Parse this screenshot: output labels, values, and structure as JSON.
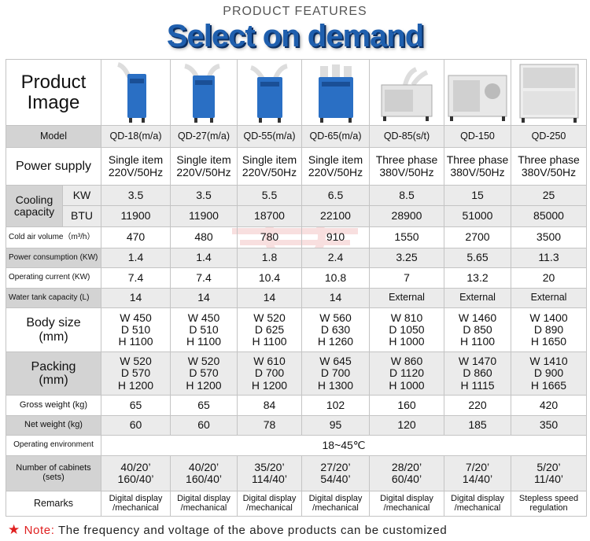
{
  "header": {
    "kicker": "PRODUCT FEATURES",
    "title": "Select on demand"
  },
  "labels": {
    "product_image": "Product\nImage",
    "model": "Model",
    "power_supply": "Power supply",
    "cooling_capacity": "Cooling\ncapacity",
    "kw": "KW",
    "btu": "BTU",
    "cold_air_volume": "Cold air volume（m³/h）",
    "power_consumption": "Power consumption (KW)",
    "operating_current": "Operating current (KW)",
    "water_tank": "Water tank capacity (L)",
    "body_size": "Body size\n(mm)",
    "packing": "Packing\n(mm)",
    "gross_weight": "Gross weight (kg)",
    "net_weight": "Net weight (kg)",
    "operating_environment": "Operating environment",
    "cabinets": "Number of cabinets\n(sets)",
    "remarks": "Remarks"
  },
  "models": [
    {
      "model": "QD-18(m/a)",
      "icon": "spot-cooler-single-duct-icon",
      "power": "Single item\n220V/50Hz",
      "kw": "3.5",
      "btu": "11900",
      "air": "470",
      "consumption": "1.4",
      "current": "7.4",
      "tank": "14",
      "body": "W 450\nD 510\nH 1100",
      "packing": "W 520\nD 570\nH 1200",
      "gross": "65",
      "net": "60",
      "cabinets": "40/20’\n160/40’",
      "remarks": "Digital display\n/mechanical"
    },
    {
      "model": "QD-27(m/a)",
      "icon": "spot-cooler-double-duct-icon",
      "power": "Single item\n220V/50Hz",
      "kw": "3.5",
      "btu": "11900",
      "air": "480",
      "consumption": "1.4",
      "current": "7.4",
      "tank": "14",
      "body": "W 450\nD 510\nH 1100",
      "packing": "W 520\nD 570\nH 1200",
      "gross": "65",
      "net": "60",
      "cabinets": "40/20’\n160/40’",
      "remarks": "Digital display\n/mechanical"
    },
    {
      "model": "QD-55(m/a)",
      "icon": "spot-cooler-double-duct-icon",
      "power": "Single item\n220V/50Hz",
      "kw": "5.5",
      "btu": "18700",
      "air": "780",
      "consumption": "1.8",
      "current": "10.4",
      "tank": "14",
      "body": "W 520\nD 625\nH 1100",
      "packing": "W 610\nD 700\nH 1200",
      "gross": "84",
      "net": "78",
      "cabinets": "35/20’\n114/40’",
      "remarks": "Digital display\n/mechanical"
    },
    {
      "model": "QD-65(m/a)",
      "icon": "spot-cooler-triple-duct-icon",
      "power": "Single item\n220V/50Hz",
      "kw": "6.5",
      "btu": "22100",
      "air": "910",
      "consumption": "2.4",
      "current": "10.8",
      "tank": "14",
      "body": "W 560\nD 630\nH 1260",
      "packing": "W 645\nD 700\nH 1300",
      "gross": "102",
      "net": "95",
      "cabinets": "27/20’\n54/40’",
      "remarks": "Digital display\n/mechanical"
    },
    {
      "model": "QD-85(s/t)",
      "icon": "industrial-cooler-duct-icon",
      "power": "Three phase\n380V/50Hz",
      "kw": "8.5",
      "btu": "28900",
      "air": "1550",
      "consumption": "3.25",
      "current": "7",
      "tank": "External",
      "body": "W 810\nD 1050\nH 1000",
      "packing": "W 860\nD 1120\nH 1000",
      "gross": "160",
      "net": "120",
      "cabinets": "28/20’\n60/40’",
      "remarks": "Digital display\n/mechanical"
    },
    {
      "model": "QD-150",
      "icon": "industrial-cooler-unit-icon",
      "power": "Three phase\n380V/50Hz",
      "kw": "15",
      "btu": "51000",
      "air": "2700",
      "consumption": "5.65",
      "current": "13.2",
      "tank": "External",
      "body": "W 1460\nD 850\nH 1100",
      "packing": "W 1470\nD 860\nH 1115",
      "gross": "220",
      "net": "185",
      "cabinets": "7/20’\n14/40’",
      "remarks": "Digital display\n/mechanical"
    },
    {
      "model": "QD-250",
      "icon": "industrial-cooler-cabinet-icon",
      "power": "Three phase\n380V/50Hz",
      "kw": "25",
      "btu": "85000",
      "air": "3500",
      "consumption": "11.3",
      "current": "20",
      "tank": "External",
      "body": "W 1400\nD 890\nH 1650",
      "packing": "W 1410\nD 900\nH 1665",
      "gross": "420",
      "net": "350",
      "cabinets": "5/20’\n11/40’",
      "remarks": "Stepless speed\nregulation"
    }
  ],
  "operating_environment_value": "18~45℃",
  "note": {
    "label": "Note:",
    "text": " The frequency and voltage of the above products can be customized"
  },
  "colors": {
    "title_blue": "#1f5fae",
    "label_gray": "#d3d3d3",
    "alt_row": "#ebebeb",
    "note_red": "#e02020"
  }
}
